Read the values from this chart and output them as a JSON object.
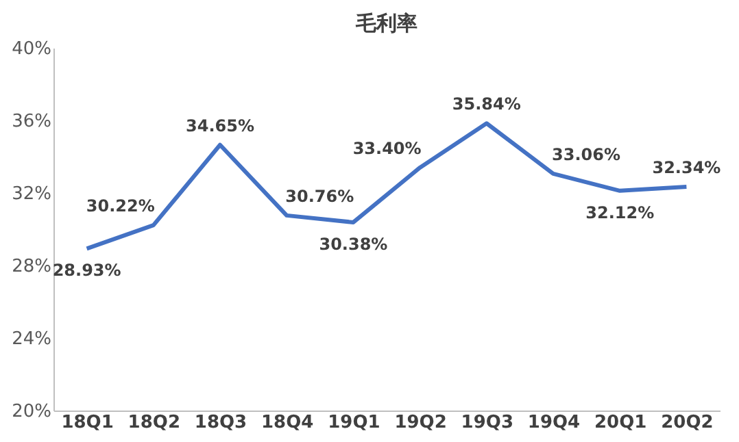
{
  "chart_data": {
    "type": "line",
    "title": "毛利率",
    "categories": [
      "18Q1",
      "18Q2",
      "18Q3",
      "18Q4",
      "19Q1",
      "19Q2",
      "19Q3",
      "19Q4",
      "20Q1",
      "20Q2"
    ],
    "series": [
      {
        "color": "#4472c4",
        "values": [
          28.93,
          30.22,
          34.65,
          30.76,
          30.38,
          33.4,
          35.84,
          33.06,
          32.12,
          32.34
        ],
        "value_labels": [
          "28.93%",
          "30.22%",
          "34.65%",
          "30.76%",
          "30.38%",
          "33.40%",
          "35.84%",
          "33.06%",
          "32.12%",
          "32.34%"
        ]
      }
    ],
    "ylim": [
      20,
      40
    ],
    "yticks": [
      {
        "value": 20,
        "label": "20%"
      },
      {
        "value": 24,
        "label": "24%"
      },
      {
        "value": 28,
        "label": "28%"
      },
      {
        "value": 32,
        "label": "32%"
      },
      {
        "value": 36,
        "label": "36%"
      },
      {
        "value": 40,
        "label": "40%"
      }
    ],
    "grid": false,
    "marker": "none",
    "line_style": "solid"
  }
}
